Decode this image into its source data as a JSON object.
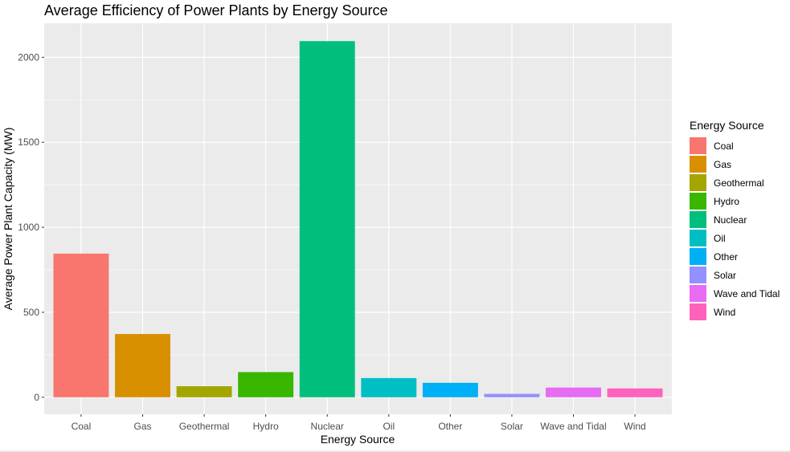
{
  "chart_data": {
    "type": "bar",
    "title": "Average Efficiency of Power Plants by Energy Source",
    "xlabel": "Energy Source",
    "ylabel": "Average Power Plant Capacity (MW)",
    "categories": [
      "Coal",
      "Gas",
      "Geothermal",
      "Hydro",
      "Nuclear",
      "Oil",
      "Other",
      "Solar",
      "Wave and Tidal",
      "Wind"
    ],
    "values": [
      845,
      372,
      65,
      148,
      2095,
      113,
      85,
      20,
      57,
      52
    ],
    "colors": [
      "#F8766D",
      "#D89000",
      "#A3A500",
      "#39B600",
      "#00BF7D",
      "#00BFC4",
      "#00B0F6",
      "#9590FF",
      "#E76BF3",
      "#FF62BC"
    ],
    "y_ticks": [
      0,
      500,
      1000,
      1500,
      2000
    ],
    "y_tick_labels": [
      "0",
      "500",
      "1000",
      "1500",
      "2000"
    ],
    "ylim": [
      -100,
      2200
    ],
    "grid": true,
    "legend": {
      "title": "Energy Source",
      "position": "right"
    }
  }
}
